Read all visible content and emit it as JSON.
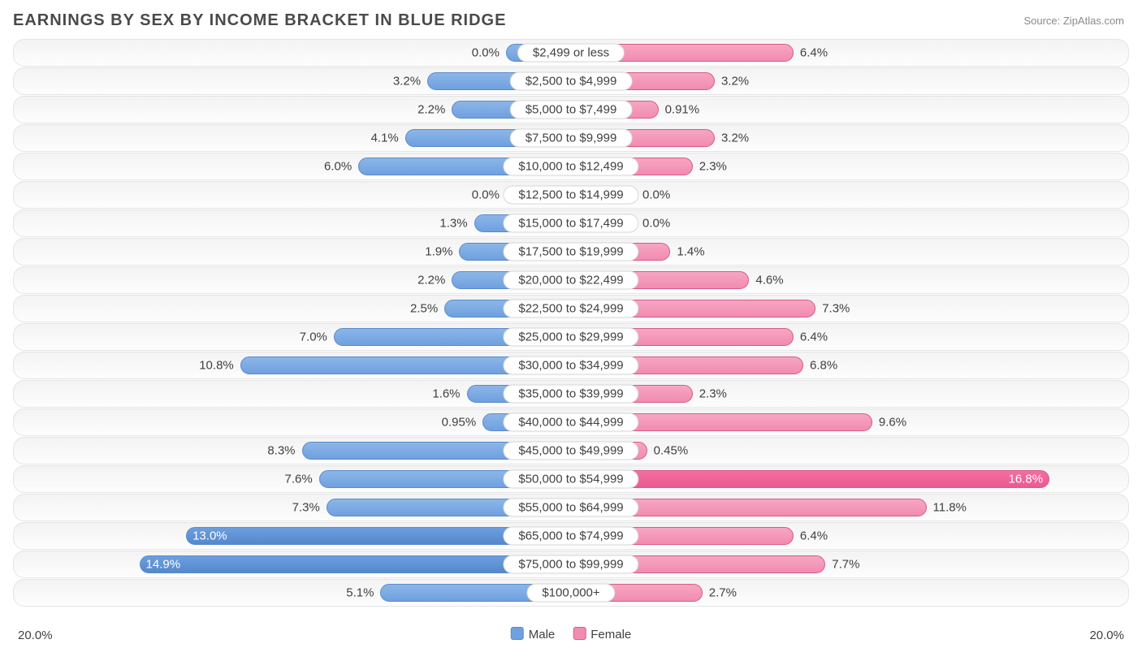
{
  "title": "EARNINGS BY SEX BY INCOME BRACKET IN BLUE RIDGE",
  "source": "Source: ZipAtlas.com",
  "axis": {
    "max": 20.0,
    "left_label": "20.0%",
    "right_label": "20.0%"
  },
  "legend": {
    "male": {
      "label": "Male",
      "color": "#6fa0df",
      "border": "#5a8bc9"
    },
    "female": {
      "label": "Female",
      "color": "#f18bb0",
      "border": "#d75a8a"
    }
  },
  "style": {
    "bar_gradient_male": [
      "#8cb6e8",
      "#6fa0df"
    ],
    "bar_gradient_female": [
      "#f7a6c2",
      "#f18bb0"
    ],
    "male_highlight": [
      "#6c9fe0",
      "#5588cc"
    ],
    "female_highlight": [
      "#f46ea0",
      "#ec5a92"
    ],
    "track_bg": "#f3f3f3",
    "track_border": "#e4e4e4",
    "label_color": "#404040",
    "center_label_width": 160,
    "value_label_pad": 8,
    "inside_threshold": 12.0
  },
  "rows": [
    {
      "label": "$2,499 or less",
      "male": 0.0,
      "male_txt": "0.0%",
      "female": 6.4,
      "female_txt": "6.4%"
    },
    {
      "label": "$2,500 to $4,999",
      "male": 3.2,
      "male_txt": "3.2%",
      "female": 3.2,
      "female_txt": "3.2%"
    },
    {
      "label": "$5,000 to $7,499",
      "male": 2.2,
      "male_txt": "2.2%",
      "female": 0.91,
      "female_txt": "0.91%"
    },
    {
      "label": "$7,500 to $9,999",
      "male": 4.1,
      "male_txt": "4.1%",
      "female": 3.2,
      "female_txt": "3.2%"
    },
    {
      "label": "$10,000 to $12,499",
      "male": 6.0,
      "male_txt": "6.0%",
      "female": 2.3,
      "female_txt": "2.3%"
    },
    {
      "label": "$12,500 to $14,999",
      "male": 0.0,
      "male_txt": "0.0%",
      "female": 0.0,
      "female_txt": "0.0%"
    },
    {
      "label": "$15,000 to $17,499",
      "male": 1.3,
      "male_txt": "1.3%",
      "female": 0.0,
      "female_txt": "0.0%"
    },
    {
      "label": "$17,500 to $19,999",
      "male": 1.9,
      "male_txt": "1.9%",
      "female": 1.4,
      "female_txt": "1.4%"
    },
    {
      "label": "$20,000 to $22,499",
      "male": 2.2,
      "male_txt": "2.2%",
      "female": 4.6,
      "female_txt": "4.6%"
    },
    {
      "label": "$22,500 to $24,999",
      "male": 2.5,
      "male_txt": "2.5%",
      "female": 7.3,
      "female_txt": "7.3%"
    },
    {
      "label": "$25,000 to $29,999",
      "male": 7.0,
      "male_txt": "7.0%",
      "female": 6.4,
      "female_txt": "6.4%"
    },
    {
      "label": "$30,000 to $34,999",
      "male": 10.8,
      "male_txt": "10.8%",
      "female": 6.8,
      "female_txt": "6.8%"
    },
    {
      "label": "$35,000 to $39,999",
      "male": 1.6,
      "male_txt": "1.6%",
      "female": 2.3,
      "female_txt": "2.3%"
    },
    {
      "label": "$40,000 to $44,999",
      "male": 0.95,
      "male_txt": "0.95%",
      "female": 9.6,
      "female_txt": "9.6%"
    },
    {
      "label": "$45,000 to $49,999",
      "male": 8.3,
      "male_txt": "8.3%",
      "female": 0.45,
      "female_txt": "0.45%"
    },
    {
      "label": "$50,000 to $54,999",
      "male": 7.6,
      "male_txt": "7.6%",
      "female": 16.8,
      "female_txt": "16.8%",
      "female_highlight": true
    },
    {
      "label": "$55,000 to $64,999",
      "male": 7.3,
      "male_txt": "7.3%",
      "female": 11.8,
      "female_txt": "11.8%"
    },
    {
      "label": "$65,000 to $74,999",
      "male": 13.0,
      "male_txt": "13.0%",
      "female": 6.4,
      "female_txt": "6.4%",
      "male_highlight": true
    },
    {
      "label": "$75,000 to $99,999",
      "male": 14.9,
      "male_txt": "14.9%",
      "female": 7.7,
      "female_txt": "7.7%",
      "male_highlight": true
    },
    {
      "label": "$100,000+",
      "male": 5.1,
      "male_txt": "5.1%",
      "female": 2.7,
      "female_txt": "2.7%"
    }
  ]
}
